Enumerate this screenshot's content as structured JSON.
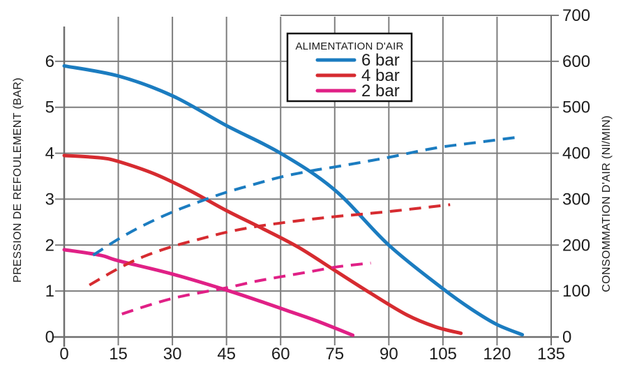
{
  "chart_data": {
    "type": "line",
    "title": "",
    "x_axis": {
      "label": "",
      "min": 0,
      "max": 135,
      "ticks": [
        0,
        15,
        30,
        45,
        60,
        75,
        90,
        105,
        120,
        135
      ]
    },
    "y_left": {
      "label": "PRESSION DE REFOULEMENT (BAR)",
      "min": 0,
      "max": 7,
      "ticks": [
        0,
        1,
        2,
        3,
        4,
        5,
        6
      ],
      "gridlines": [
        1,
        2,
        3,
        4,
        5,
        6,
        7
      ]
    },
    "y_right": {
      "label": "CONSOMMATION D'AIR (Nl/MIN)",
      "min": 0,
      "max": 700,
      "ticks": [
        0,
        100,
        200,
        300,
        400,
        500,
        600,
        700
      ]
    },
    "legend": {
      "title": "ALIMENTATION D'AIR",
      "position": "top-center",
      "entries": [
        {
          "label": "6 bar",
          "color": "#1b7cc0"
        },
        {
          "label": "4 bar",
          "color": "#d62b30"
        },
        {
          "label": "2 bar",
          "color": "#e02086"
        }
      ]
    },
    "grid": true,
    "series": [
      {
        "name": "pression-6bar",
        "legend_label": "6 bar",
        "axis": "left",
        "style": "solid",
        "color": "#1b7cc0",
        "points": [
          [
            0,
            5.9
          ],
          [
            15,
            5.68
          ],
          [
            30,
            5.25
          ],
          [
            45,
            4.6
          ],
          [
            60,
            4.0
          ],
          [
            75,
            3.2
          ],
          [
            90,
            2.0
          ],
          [
            105,
            1.05
          ],
          [
            113,
            0.6
          ],
          [
            120,
            0.27
          ],
          [
            127,
            0.05
          ]
        ]
      },
      {
        "name": "pression-4bar",
        "legend_label": "4 bar",
        "axis": "left",
        "style": "solid",
        "color": "#d62b30",
        "points": [
          [
            0,
            3.95
          ],
          [
            10,
            3.9
          ],
          [
            15,
            3.82
          ],
          [
            25,
            3.55
          ],
          [
            35,
            3.18
          ],
          [
            45,
            2.75
          ],
          [
            55,
            2.36
          ],
          [
            65,
            1.95
          ],
          [
            75,
            1.45
          ],
          [
            85,
            0.95
          ],
          [
            95,
            0.48
          ],
          [
            103,
            0.22
          ],
          [
            110,
            0.08
          ]
        ]
      },
      {
        "name": "pression-2bar",
        "legend_label": "2 bar",
        "axis": "left",
        "style": "solid",
        "color": "#e02086",
        "points": [
          [
            0,
            1.9
          ],
          [
            10,
            1.78
          ],
          [
            15,
            1.66
          ],
          [
            30,
            1.37
          ],
          [
            45,
            1.02
          ],
          [
            55,
            0.76
          ],
          [
            62,
            0.57
          ],
          [
            70,
            0.35
          ],
          [
            80,
            0.04
          ]
        ]
      },
      {
        "name": "consommation-6bar",
        "legend_label": "6 bar",
        "axis": "right",
        "style": "dashed",
        "color": "#1b7cc0",
        "points": [
          [
            8,
            178
          ],
          [
            15,
            213
          ],
          [
            22,
            243
          ],
          [
            30,
            272
          ],
          [
            38,
            296
          ],
          [
            45,
            315
          ],
          [
            53,
            333
          ],
          [
            60,
            348
          ],
          [
            68,
            361
          ],
          [
            75,
            370
          ],
          [
            83,
            381
          ],
          [
            90,
            391
          ],
          [
            98,
            404
          ],
          [
            105,
            414
          ],
          [
            112,
            421
          ],
          [
            119,
            428
          ],
          [
            126,
            435
          ]
        ]
      },
      {
        "name": "consommation-4bar",
        "legend_label": "4 bar",
        "axis": "right",
        "style": "dashed",
        "color": "#d62b30",
        "points": [
          [
            7,
            113
          ],
          [
            15,
            149
          ],
          [
            22,
            175
          ],
          [
            30,
            197
          ],
          [
            38,
            214
          ],
          [
            45,
            228
          ],
          [
            53,
            240
          ],
          [
            60,
            248
          ],
          [
            68,
            256
          ],
          [
            75,
            262
          ],
          [
            82,
            267
          ],
          [
            90,
            273
          ],
          [
            98,
            280
          ],
          [
            107,
            288
          ]
        ]
      },
      {
        "name": "consommation-2bar",
        "legend_label": "2 bar",
        "axis": "right",
        "style": "dashed",
        "color": "#e02086",
        "points": [
          [
            16,
            50
          ],
          [
            23,
            68
          ],
          [
            30,
            84
          ],
          [
            38,
            97
          ],
          [
            45,
            107
          ],
          [
            53,
            121
          ],
          [
            60,
            131
          ],
          [
            68,
            142
          ],
          [
            76,
            153
          ],
          [
            85,
            161
          ]
        ]
      }
    ],
    "colors": {
      "grid": "#7d7d7d",
      "axis": "#6f6f6f",
      "text": "#1c1c1c",
      "background": "#ffffff"
    }
  }
}
